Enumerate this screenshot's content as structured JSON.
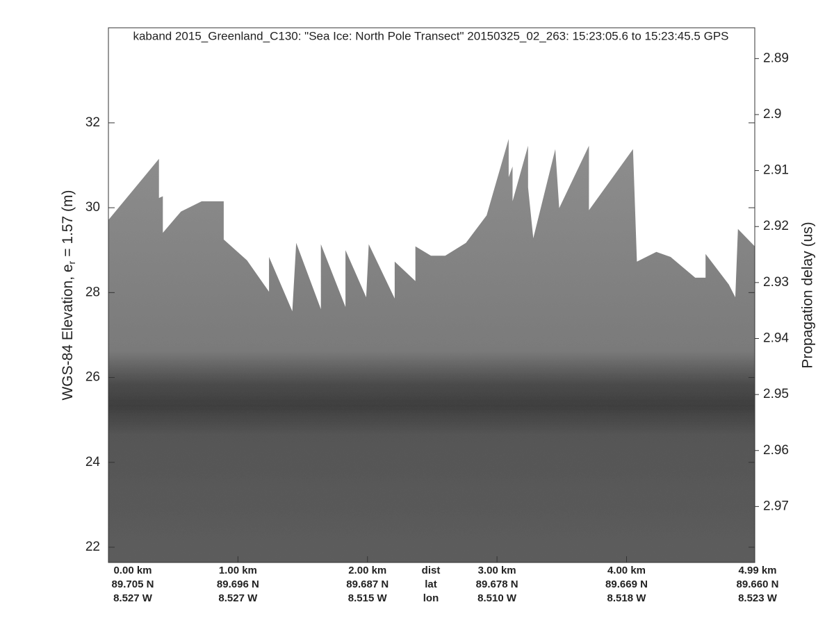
{
  "chart_data": {
    "type": "echogram",
    "title": "kaband 2015_Greenland_C130: \"Sea Ice: North Pole Transect\"  20150325_02_263: 15:23:05.6 to 15:23:45.5 GPS",
    "ylabel": [
      "WGS-84 Elevation, e",
      "r",
      "= 1.57 (m)"
    ],
    "y2label": "Propagation delay (us)",
    "ylim": [
      21.64,
      34.24
    ],
    "yticks": [
      22,
      24,
      26,
      28,
      30,
      32
    ],
    "y2lim": [
      2.98,
      2.8845
    ],
    "y2ticks": [
      2.89,
      2.9,
      2.91,
      2.92,
      2.93,
      2.94,
      2.95,
      2.96,
      2.97
    ],
    "xlim": [
      0,
      4.99
    ],
    "xticks": [
      {
        "value": 0,
        "label": "0.00 km"
      },
      {
        "value": 1,
        "label": "1.00 km"
      },
      {
        "value": 2,
        "label": "2.00 km"
      },
      {
        "value": 3,
        "label": "3.00 km"
      },
      {
        "value": 4,
        "label": "4.00 km"
      },
      {
        "value": 4.99,
        "label": "4.99 km"
      }
    ],
    "lat_labels": [
      "89.705 N",
      "89.696 N",
      "89.687 N",
      "89.678 N",
      "89.669 N",
      "89.660 N"
    ],
    "lon_labels": [
      "8.527 W",
      "8.527 W",
      "8.515 W",
      "8.510 W",
      "8.518 W",
      "8.523 W"
    ],
    "row_labels": [
      "dist",
      "lat",
      "lon"
    ],
    "echo_top": {
      "x": [
        0,
        0.39,
        0.39,
        0.42,
        0.42,
        0.56,
        0.72,
        0.89,
        0.89,
        1.07,
        1.24,
        1.24,
        1.42,
        1.45,
        1.64,
        1.64,
        1.83,
        1.83,
        1.99,
        2.01,
        2.21,
        2.21,
        2.37,
        2.37,
        2.49,
        2.6,
        2.76,
        2.92,
        3.09,
        3.09,
        3.12,
        3.12,
        3.24,
        3.24,
        3.28,
        3.45,
        3.48,
        3.71,
        3.71,
        4.05,
        4.08,
        4.23,
        4.34,
        4.53,
        4.61,
        4.61,
        4.79,
        4.84,
        4.86,
        4.99
      ],
      "values": [
        29.71,
        31.15,
        30.23,
        30.27,
        29.41,
        29.91,
        30.15,
        30.15,
        29.25,
        28.76,
        28.02,
        28.84,
        27.56,
        29.17,
        27.61,
        29.14,
        27.66,
        29.0,
        27.89,
        29.14,
        27.86,
        28.73,
        28.27,
        29.09,
        28.87,
        28.87,
        29.17,
        29.82,
        31.62,
        30.72,
        30.97,
        30.15,
        31.46,
        30.48,
        29.28,
        31.38,
        29.99,
        31.46,
        29.94,
        31.38,
        28.73,
        28.96,
        28.84,
        28.35,
        28.35,
        28.91,
        28.19,
        27.89,
        29.5,
        29.09
      ]
    }
  }
}
